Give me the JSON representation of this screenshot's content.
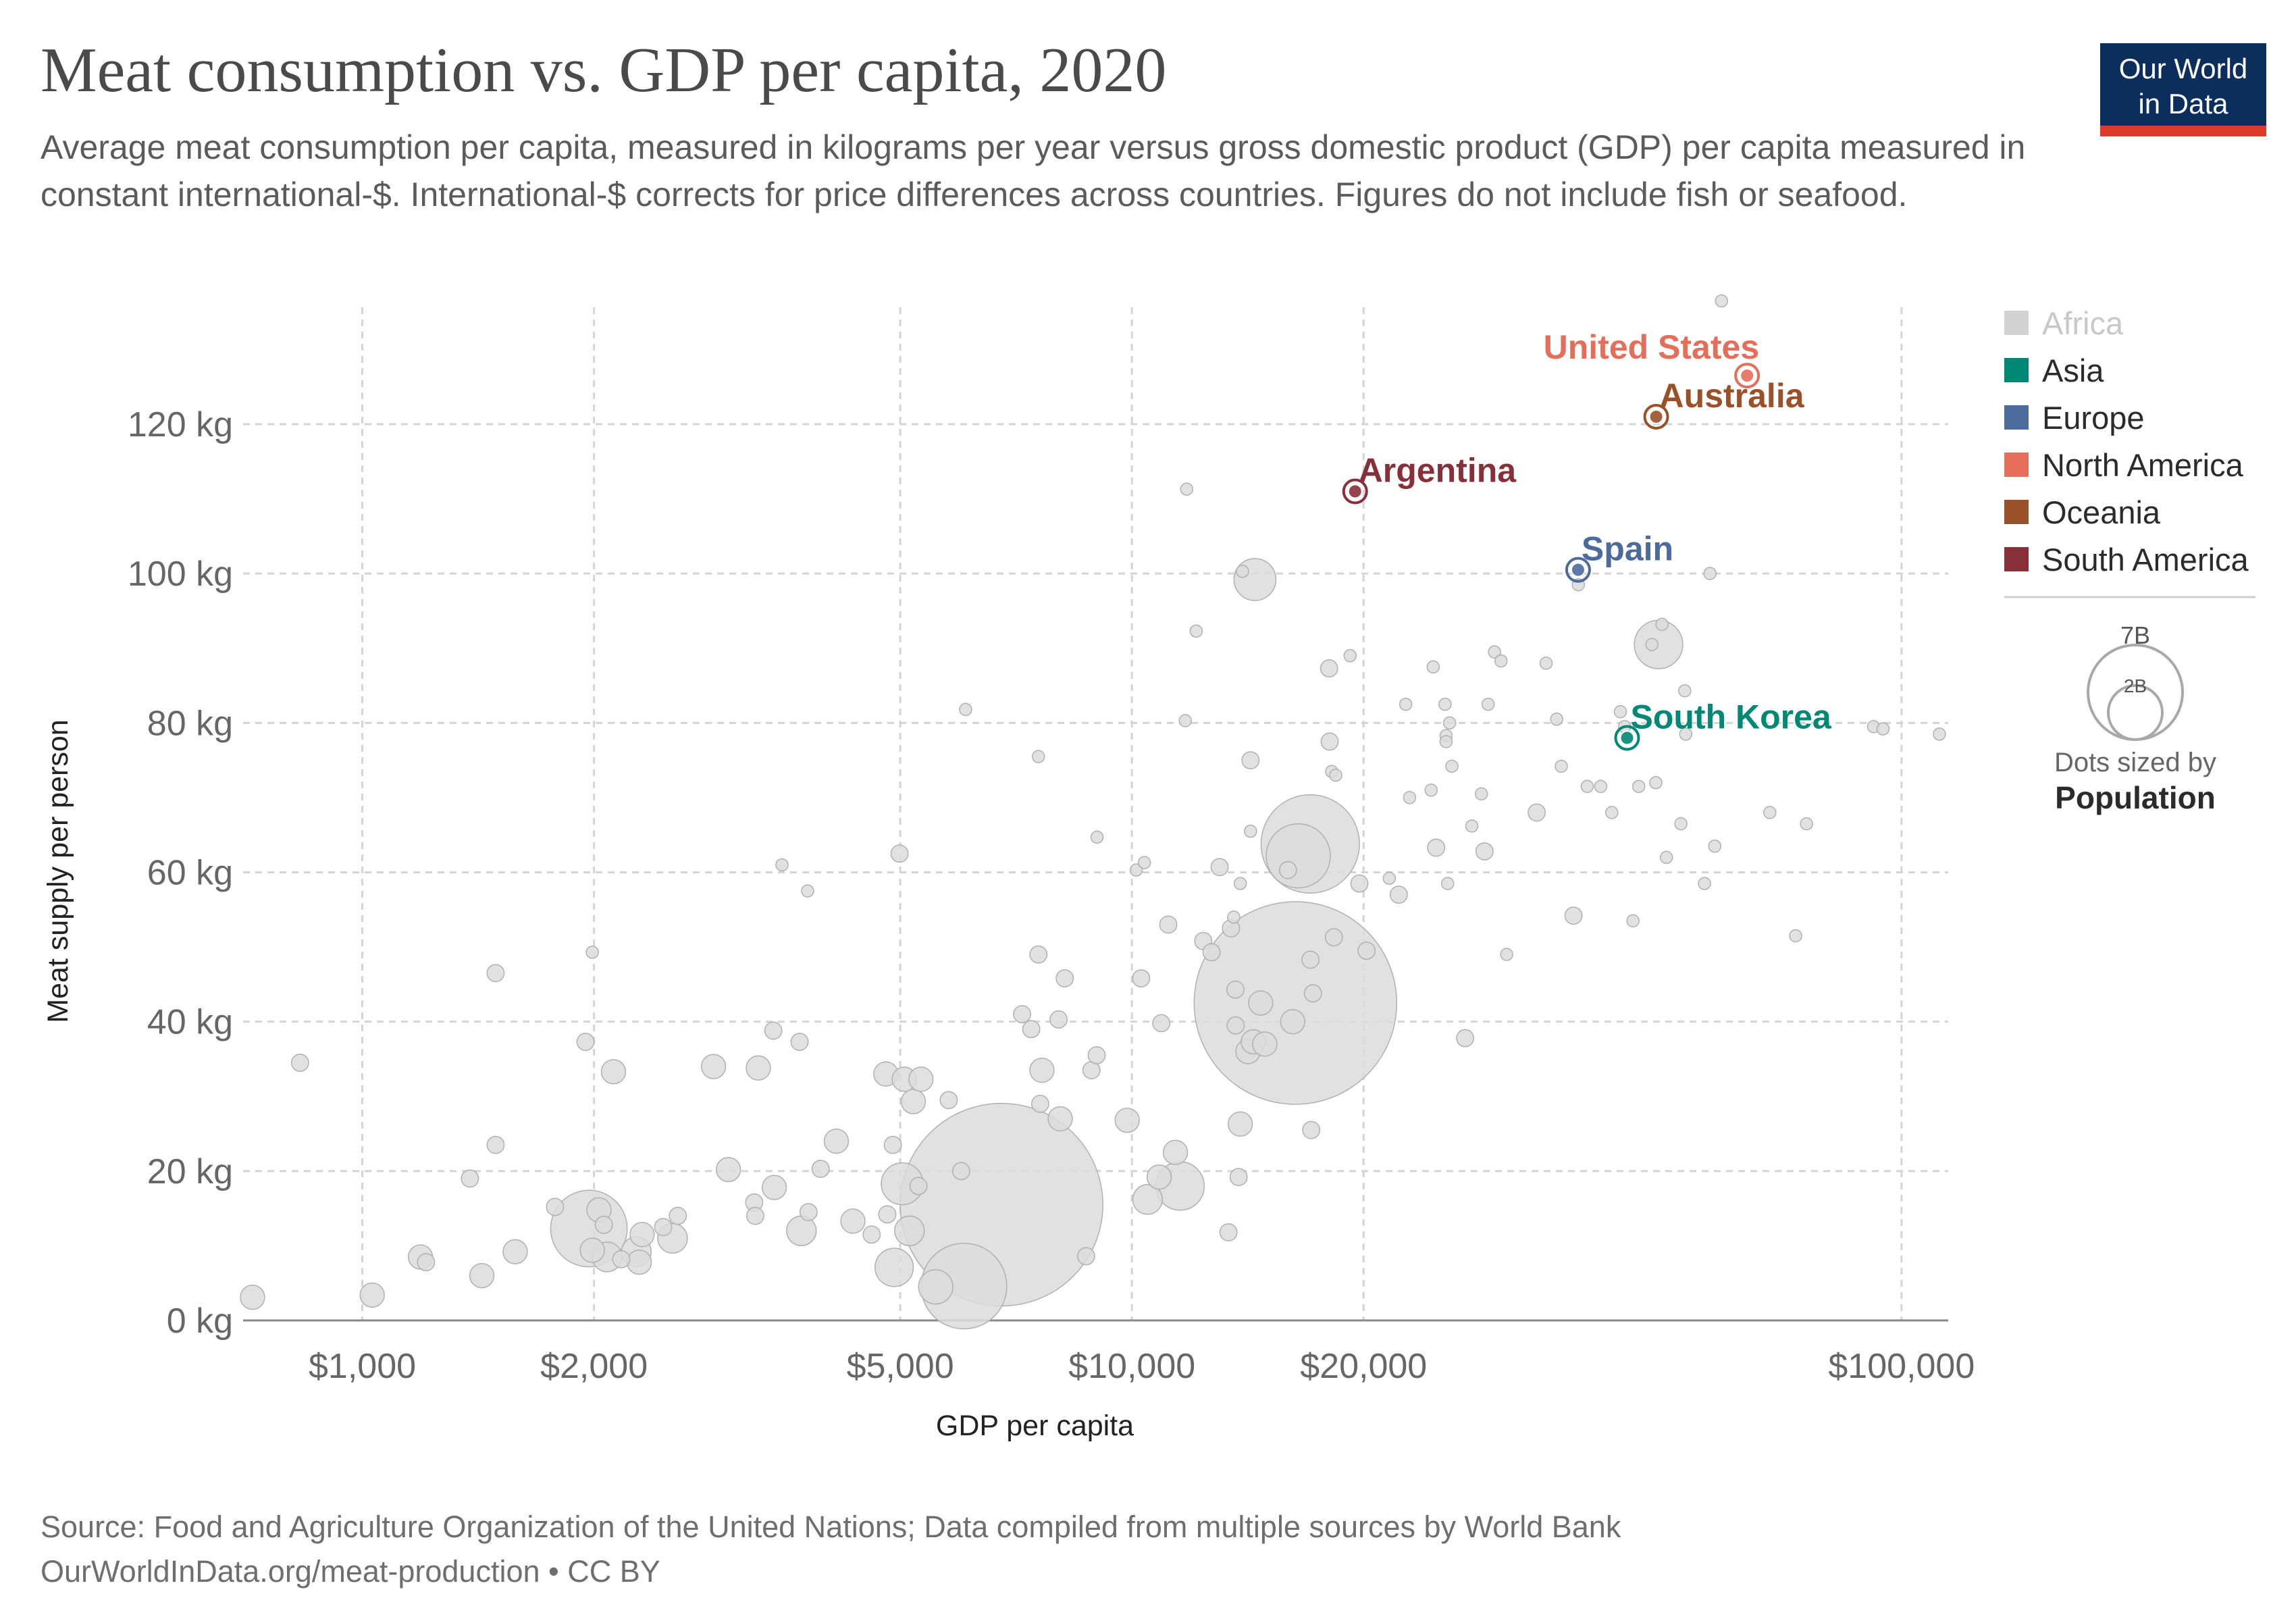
{
  "header": {
    "title": "Meat consumption vs. GDP per capita, 2020",
    "subtitle": "Average meat consumption per capita, measured in kilograms per year versus gross domestic product (GDP) per capita measured in constant international-$. International-$ corrects for price differences across countries. Figures do not include fish or seafood.",
    "logo_line1": "Our World",
    "logo_line2": "in Data"
  },
  "footer": {
    "source": "Source: Food and Agriculture Organization of the United Nations; Data compiled from multiple sources by World Bank",
    "url_license": "OurWorldInData.org/meat-production • CC BY"
  },
  "colors": {
    "Africa": "#d3d3d3",
    "Asia": "#008876",
    "Europe": "#4c6a9c",
    "North America": "#e56e5a",
    "Oceania": "#9a5129",
    "South America": "#883039",
    "grey_point": "#dcdcdc",
    "grey_stroke": "#b0b0b0"
  },
  "chart_data": {
    "type": "scatter",
    "xlabel": "GDP per capita",
    "ylabel": "Meat supply per person",
    "x_scale": "log",
    "xlim": [
      700,
      115000
    ],
    "ylim": [
      0,
      135
    ],
    "x_ticks": [
      1000,
      2000,
      5000,
      10000,
      20000,
      100000
    ],
    "x_tick_labels": [
      "$1,000",
      "$2,000",
      "$5,000",
      "$10,000",
      "$20,000",
      "$100,000"
    ],
    "y_ticks": [
      0,
      20,
      40,
      60,
      80,
      100,
      120
    ],
    "y_tick_labels": [
      "0 kg",
      "20 kg",
      "40 kg",
      "60 kg",
      "80 kg",
      "100 kg",
      "120 kg"
    ],
    "grid": true,
    "legend": {
      "placement": "right",
      "entries": [
        "Africa",
        "Asia",
        "Europe",
        "North America",
        "Oceania",
        "South America"
      ],
      "size_legend_title": "Dots sized by",
      "size_legend_bold": "Population",
      "size_legend_values": [
        "7B",
        "2B"
      ]
    },
    "highlighted": [
      {
        "label": "United States",
        "continent": "North America",
        "x": 63000,
        "y": 126.5
      },
      {
        "label": "Australia",
        "continent": "Oceania",
        "x": 48000,
        "y": 121
      },
      {
        "label": "Argentina",
        "continent": "South America",
        "x": 19500,
        "y": 111
      },
      {
        "label": "Spain",
        "continent": "Europe",
        "x": 38000,
        "y": 100.5
      },
      {
        "label": "South Korea",
        "continent": "Asia",
        "x": 44000,
        "y": 78
      }
    ],
    "points": [
      {
        "x": 720,
        "y": 3.1,
        "pop": 0.02
      },
      {
        "x": 830,
        "y": 34.5,
        "pop": 0.01
      },
      {
        "x": 1030,
        "y": 3.4,
        "pop": 0.02
      },
      {
        "x": 1190,
        "y": 8.5,
        "pop": 0.02
      },
      {
        "x": 1210,
        "y": 7.8,
        "pop": 0.01
      },
      {
        "x": 1380,
        "y": 19,
        "pop": 0.01
      },
      {
        "x": 1430,
        "y": 6,
        "pop": 0.02
      },
      {
        "x": 1490,
        "y": 46.5,
        "pop": 0.01
      },
      {
        "x": 1490,
        "y": 23.5,
        "pop": 0.01
      },
      {
        "x": 1580,
        "y": 9.2,
        "pop": 0.02
      },
      {
        "x": 1780,
        "y": 15.2,
        "pop": 0.01
      },
      {
        "x": 1950,
        "y": 37.3,
        "pop": 0.01
      },
      {
        "x": 1970,
        "y": 12.3,
        "pop": 0.2
      },
      {
        "x": 1990,
        "y": 49.3,
        "pop": 0.005
      },
      {
        "x": 1990,
        "y": 9.4,
        "pop": 0.02
      },
      {
        "x": 2030,
        "y": 14.8,
        "pop": 0.02
      },
      {
        "x": 2060,
        "y": 12.8,
        "pop": 0.01
      },
      {
        "x": 2080,
        "y": 8.5,
        "pop": 0.03
      },
      {
        "x": 2120,
        "y": 33.3,
        "pop": 0.02
      },
      {
        "x": 2170,
        "y": 8.2,
        "pop": 0.01
      },
      {
        "x": 2270,
        "y": 9.2,
        "pop": 0.03
      },
      {
        "x": 2290,
        "y": 7.8,
        "pop": 0.02
      },
      {
        "x": 2310,
        "y": 11.5,
        "pop": 0.02
      },
      {
        "x": 2460,
        "y": 12.5,
        "pop": 0.01
      },
      {
        "x": 2530,
        "y": 11,
        "pop": 0.03
      },
      {
        "x": 2570,
        "y": 14,
        "pop": 0.01
      },
      {
        "x": 2860,
        "y": 34,
        "pop": 0.02
      },
      {
        "x": 2990,
        "y": 20.2,
        "pop": 0.02
      },
      {
        "x": 3230,
        "y": 15.8,
        "pop": 0.01
      },
      {
        "x": 3240,
        "y": 14,
        "pop": 0.01
      },
      {
        "x": 3270,
        "y": 33.8,
        "pop": 0.02
      },
      {
        "x": 3420,
        "y": 38.8,
        "pop": 0.01
      },
      {
        "x": 3430,
        "y": 17.8,
        "pop": 0.02
      },
      {
        "x": 3510,
        "y": 61,
        "pop": 0.005
      },
      {
        "x": 3700,
        "y": 37.3,
        "pop": 0.01
      },
      {
        "x": 3720,
        "y": 12,
        "pop": 0.03
      },
      {
        "x": 3800,
        "y": 14.5,
        "pop": 0.01
      },
      {
        "x": 3790,
        "y": 57.5,
        "pop": 0.005
      },
      {
        "x": 3940,
        "y": 20.3,
        "pop": 0.01
      },
      {
        "x": 4130,
        "y": 24,
        "pop": 0.02
      },
      {
        "x": 4340,
        "y": 13.3,
        "pop": 0.02
      },
      {
        "x": 4590,
        "y": 11.5,
        "pop": 0.01
      },
      {
        "x": 4790,
        "y": 33,
        "pop": 0.02
      },
      {
        "x": 4810,
        "y": 14.2,
        "pop": 0.01
      },
      {
        "x": 4890,
        "y": 23.5,
        "pop": 0.01
      },
      {
        "x": 4910,
        "y": 7.1,
        "pop": 0.05
      },
      {
        "x": 4990,
        "y": 62.5,
        "pop": 0.01
      },
      {
        "x": 5030,
        "y": 18.3,
        "pop": 0.06
      },
      {
        "x": 5060,
        "y": 32.3,
        "pop": 0.02
      },
      {
        "x": 5140,
        "y": 12,
        "pop": 0.03
      },
      {
        "x": 5200,
        "y": 29.3,
        "pop": 0.02
      },
      {
        "x": 5280,
        "y": 18,
        "pop": 0.01
      },
      {
        "x": 5320,
        "y": 32.3,
        "pop": 0.02
      },
      {
        "x": 5560,
        "y": 4.5,
        "pop": 0.04
      },
      {
        "x": 5780,
        "y": 29.5,
        "pop": 0.01
      },
      {
        "x": 6000,
        "y": 20,
        "pop": 0.01
      },
      {
        "x": 6080,
        "y": 81.8,
        "pop": 0.005
      },
      {
        "x": 6050,
        "y": 4.6,
        "pop": 0.25
      },
      {
        "x": 6770,
        "y": 15.5,
        "pop": 1.4
      },
      {
        "x": 7200,
        "y": 41,
        "pop": 0.01
      },
      {
        "x": 7400,
        "y": 39,
        "pop": 0.01
      },
      {
        "x": 7560,
        "y": 75.5,
        "pop": 0.005
      },
      {
        "x": 7560,
        "y": 49,
        "pop": 0.01
      },
      {
        "x": 7640,
        "y": 33.5,
        "pop": 0.02
      },
      {
        "x": 7600,
        "y": 29,
        "pop": 0.01
      },
      {
        "x": 8030,
        "y": 40.3,
        "pop": 0.01
      },
      {
        "x": 8070,
        "y": 27,
        "pop": 0.02
      },
      {
        "x": 8180,
        "y": 45.8,
        "pop": 0.01
      },
      {
        "x": 8720,
        "y": 8.6,
        "pop": 0.01
      },
      {
        "x": 8860,
        "y": 33.5,
        "pop": 0.01
      },
      {
        "x": 9000,
        "y": 35.5,
        "pop": 0.01
      },
      {
        "x": 9010,
        "y": 64.7,
        "pop": 0.005
      },
      {
        "x": 9860,
        "y": 26.8,
        "pop": 0.02
      },
      {
        "x": 10130,
        "y": 60.3,
        "pop": 0.005
      },
      {
        "x": 10280,
        "y": 45.8,
        "pop": 0.01
      },
      {
        "x": 10380,
        "y": 61.3,
        "pop": 0.005
      },
      {
        "x": 10480,
        "y": 16.2,
        "pop": 0.03
      },
      {
        "x": 10920,
        "y": 39.8,
        "pop": 0.01
      },
      {
        "x": 10850,
        "y": 19.2,
        "pop": 0.02
      },
      {
        "x": 11150,
        "y": 53,
        "pop": 0.01
      },
      {
        "x": 11390,
        "y": 22.5,
        "pop": 0.02
      },
      {
        "x": 11550,
        "y": 18,
        "pop": 0.08
      },
      {
        "x": 11730,
        "y": 80.3,
        "pop": 0.005
      },
      {
        "x": 11780,
        "y": 111.3,
        "pop": 0.005
      },
      {
        "x": 12120,
        "y": 92.3,
        "pop": 0.005
      },
      {
        "x": 12380,
        "y": 50.8,
        "pop": 0.01
      },
      {
        "x": 12690,
        "y": 49.3,
        "pop": 0.01
      },
      {
        "x": 13000,
        "y": 60.7,
        "pop": 0.01
      },
      {
        "x": 13350,
        "y": 11.8,
        "pop": 0.01
      },
      {
        "x": 13450,
        "y": 52.5,
        "pop": 0.01
      },
      {
        "x": 13560,
        "y": 54,
        "pop": 0.005
      },
      {
        "x": 13630,
        "y": 44.3,
        "pop": 0.01
      },
      {
        "x": 13640,
        "y": 39.5,
        "pop": 0.01
      },
      {
        "x": 13760,
        "y": 19.2,
        "pop": 0.01
      },
      {
        "x": 13830,
        "y": 26.3,
        "pop": 0.02
      },
      {
        "x": 13830,
        "y": 58.5,
        "pop": 0.005
      },
      {
        "x": 13920,
        "y": 100.3,
        "pop": 0.005
      },
      {
        "x": 14150,
        "y": 36,
        "pop": 0.02
      },
      {
        "x": 14260,
        "y": 75,
        "pop": 0.01
      },
      {
        "x": 14260,
        "y": 65.5,
        "pop": 0.005
      },
      {
        "x": 14380,
        "y": 37.3,
        "pop": 0.02
      },
      {
        "x": 14450,
        "y": 99.2,
        "pop": 0.06
      },
      {
        "x": 14700,
        "y": 42.5,
        "pop": 0.02
      },
      {
        "x": 14880,
        "y": 37,
        "pop": 0.02
      },
      {
        "x": 15950,
        "y": 60.3,
        "pop": 0.01
      },
      {
        "x": 16180,
        "y": 40,
        "pop": 0.02
      },
      {
        "x": 16310,
        "y": 42.5,
        "pop": 1.4
      },
      {
        "x": 16450,
        "y": 62.2,
        "pop": 0.14
      },
      {
        "x": 17060,
        "y": 48.3,
        "pop": 0.01
      },
      {
        "x": 17050,
        "y": 63.8,
        "pop": 0.33
      },
      {
        "x": 17100,
        "y": 25.5,
        "pop": 0.01
      },
      {
        "x": 17190,
        "y": 43.8,
        "pop": 0.01
      },
      {
        "x": 18040,
        "y": 87.3,
        "pop": 0.01
      },
      {
        "x": 18070,
        "y": 77.5,
        "pop": 0.01
      },
      {
        "x": 18180,
        "y": 73.5,
        "pop": 0.005
      },
      {
        "x": 18300,
        "y": 51.3,
        "pop": 0.01
      },
      {
        "x": 18400,
        "y": 73,
        "pop": 0.005
      },
      {
        "x": 19210,
        "y": 89,
        "pop": 0.005
      },
      {
        "x": 19750,
        "y": 58.5,
        "pop": 0.01
      },
      {
        "x": 20180,
        "y": 49.5,
        "pop": 0.01
      },
      {
        "x": 21600,
        "y": 59.2,
        "pop": 0.005
      },
      {
        "x": 22220,
        "y": 57,
        "pop": 0.01
      },
      {
        "x": 22690,
        "y": 82.5,
        "pop": 0.005
      },
      {
        "x": 22950,
        "y": 70,
        "pop": 0.005
      },
      {
        "x": 24480,
        "y": 71,
        "pop": 0.005
      },
      {
        "x": 24630,
        "y": 87.5,
        "pop": 0.005
      },
      {
        "x": 24850,
        "y": 63.3,
        "pop": 0.01
      },
      {
        "x": 25520,
        "y": 82.5,
        "pop": 0.005
      },
      {
        "x": 25600,
        "y": 78.3,
        "pop": 0.005
      },
      {
        "x": 25600,
        "y": 77.5,
        "pop": 0.005
      },
      {
        "x": 25720,
        "y": 58.5,
        "pop": 0.005
      },
      {
        "x": 25870,
        "y": 80,
        "pop": 0.005
      },
      {
        "x": 26050,
        "y": 74.2,
        "pop": 0.005
      },
      {
        "x": 27100,
        "y": 37.8,
        "pop": 0.01
      },
      {
        "x": 27650,
        "y": 66.2,
        "pop": 0.005
      },
      {
        "x": 28450,
        "y": 70.5,
        "pop": 0.005
      },
      {
        "x": 28720,
        "y": 62.8,
        "pop": 0.01
      },
      {
        "x": 29030,
        "y": 82.5,
        "pop": 0.005
      },
      {
        "x": 29590,
        "y": 89.5,
        "pop": 0.005
      },
      {
        "x": 30170,
        "y": 88.3,
        "pop": 0.005
      },
      {
        "x": 30690,
        "y": 49,
        "pop": 0.005
      },
      {
        "x": 33570,
        "y": 68,
        "pop": 0.01
      },
      {
        "x": 34530,
        "y": 88,
        "pop": 0.005
      },
      {
        "x": 35640,
        "y": 80.5,
        "pop": 0.005
      },
      {
        "x": 36130,
        "y": 74.2,
        "pop": 0.005
      },
      {
        "x": 37480,
        "y": 54.2,
        "pop": 0.01
      },
      {
        "x": 38030,
        "y": 98.5,
        "pop": 0.005
      },
      {
        "x": 39050,
        "y": 71.5,
        "pop": 0.005
      },
      {
        "x": 40660,
        "y": 71.5,
        "pop": 0.005
      },
      {
        "x": 42030,
        "y": 68,
        "pop": 0.005
      },
      {
        "x": 43120,
        "y": 81.5,
        "pop": 0.005
      },
      {
        "x": 43670,
        "y": 79.5,
        "pop": 0.005
      },
      {
        "x": 44780,
        "y": 53.5,
        "pop": 0.005
      },
      {
        "x": 45560,
        "y": 71.5,
        "pop": 0.005
      },
      {
        "x": 47390,
        "y": 90.5,
        "pop": 0.005
      },
      {
        "x": 47950,
        "y": 72,
        "pop": 0.005
      },
      {
        "x": 48840,
        "y": 93.2,
        "pop": 0.005
      },
      {
        "x": 48340,
        "y": 90.5,
        "pop": 0.08
      },
      {
        "x": 49490,
        "y": 62,
        "pop": 0.005
      },
      {
        "x": 51680,
        "y": 66.5,
        "pop": 0.005
      },
      {
        "x": 52440,
        "y": 78.5,
        "pop": 0.005
      },
      {
        "x": 52280,
        "y": 84.3,
        "pop": 0.005
      },
      {
        "x": 55460,
        "y": 58.5,
        "pop": 0.005
      },
      {
        "x": 56380,
        "y": 100,
        "pop": 0.005
      },
      {
        "x": 57190,
        "y": 63.5,
        "pop": 0.005
      },
      {
        "x": 58360,
        "y": 136.5,
        "pop": 0.005
      },
      {
        "x": 67440,
        "y": 68,
        "pop": 0.005
      },
      {
        "x": 72850,
        "y": 51.5,
        "pop": 0.005
      },
      {
        "x": 75260,
        "y": 66.5,
        "pop": 0.005
      },
      {
        "x": 91970,
        "y": 79.5,
        "pop": 0.005
      },
      {
        "x": 94620,
        "y": 79.2,
        "pop": 0.005
      },
      {
        "x": 112000,
        "y": 78.5,
        "pop": 0.005
      }
    ]
  }
}
